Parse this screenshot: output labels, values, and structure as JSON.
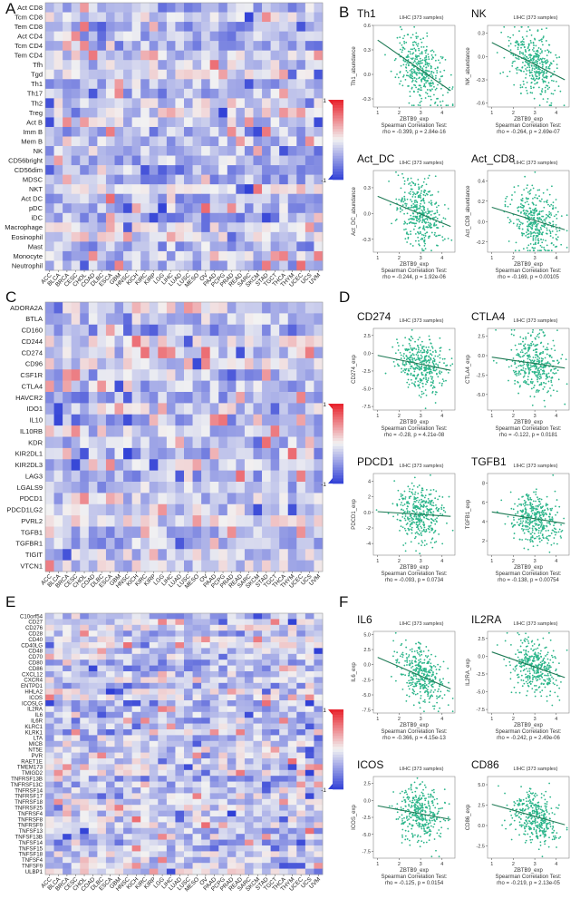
{
  "figure": {
    "panels": {
      "A": {
        "letter": "A"
      },
      "B": {
        "letter": "B"
      },
      "C": {
        "letter": "C"
      },
      "D": {
        "letter": "D"
      },
      "E": {
        "letter": "E"
      },
      "F": {
        "letter": "F"
      }
    },
    "palette": {
      "negative": "#2f3fd6",
      "neutral": "#f2f2f2",
      "positive": "#e8202a",
      "scatter": "#2bb58a",
      "fit_line": "#1f7a55"
    }
  },
  "heatmap_cancers": [
    "ACC",
    "BLCA",
    "BRCA",
    "CESC",
    "CHOL",
    "COAD",
    "DLBC",
    "ESCA",
    "GBM",
    "HNSC",
    "KICH",
    "KIRC",
    "KIRP",
    "LGG",
    "LIHC",
    "LUAD",
    "LUSC",
    "MESO",
    "OV",
    "PAAD",
    "PCPG",
    "PRAD",
    "READ",
    "SARC",
    "SKCM",
    "STAD",
    "TGCT",
    "THCA",
    "THYM",
    "UCEC",
    "UCS",
    "UVM"
  ],
  "chart_data": [
    {
      "type": "heatmap",
      "panel": "A",
      "rows": [
        "Act CD8",
        "Tcm CD8",
        "Tem CD8",
        "Act CD4",
        "Tcm CD4",
        "Tem CD4",
        "Tfh",
        "Tgd",
        "Th1",
        "Th17",
        "Th2",
        "Treg",
        "Act B",
        "Imm B",
        "Mem B",
        "NK",
        "CD56bright",
        "CD56dim",
        "MDSC",
        "NKT",
        "Act DC",
        "pDC",
        "iDC",
        "Macrophage",
        "Eosinophil",
        "Mast",
        "Monocyte",
        "Neutrophil"
      ],
      "columns_ref": "heatmap_cancers",
      "color_scale": {
        "min": -1,
        "max": 1,
        "min_label": "-1",
        "max_label": "1"
      }
    },
    {
      "type": "heatmap",
      "panel": "C",
      "rows": [
        "ADORA2A",
        "BTLA",
        "CD160",
        "CD244",
        "CD274",
        "CD96",
        "CSF1R",
        "CTLA4",
        "HAVCR2",
        "IDO1",
        "IL10",
        "IL10RB",
        "KDR",
        "KIR2DL1",
        "KIR2DL3",
        "LAG3",
        "LGALS9",
        "PDCD1",
        "PDCD1LG2",
        "PVRL2",
        "TGFB1",
        "TGFBR1",
        "TIGIT",
        "VTCN1"
      ],
      "columns_ref": "heatmap_cancers",
      "color_scale": {
        "min": -1,
        "max": 1,
        "min_label": "-1",
        "max_label": "1"
      }
    },
    {
      "type": "heatmap",
      "panel": "E",
      "rows": [
        "C10orf54",
        "CD27",
        "CD276",
        "CD28",
        "CD40",
        "CD40LG",
        "CD48",
        "CD70",
        "CD80",
        "CD86",
        "CXCL12",
        "CXCR4",
        "ENTPD1",
        "HHLA2",
        "ICOS",
        "ICOSLG",
        "IL2RA",
        "IL6",
        "IL6R",
        "KLRC1",
        "KLRK1",
        "LTA",
        "MICB",
        "NT5E",
        "PVR",
        "RAET1E",
        "TMEM173",
        "TMIGD2",
        "TNFRSF13B",
        "TNFRSF13C",
        "TNFRSF14",
        "TNFRSF17",
        "TNFRSF18",
        "TNFRSF25",
        "TNFRSF4",
        "TNFRSF8",
        "TNFRSF9",
        "TNFSF13",
        "TNFSF13B",
        "TNFSF14",
        "TNFSF15",
        "TNFSF18",
        "TNFSF4",
        "TNFSF9",
        "ULBP1"
      ],
      "columns_ref": "heatmap_cancers",
      "color_scale": {
        "min": -1,
        "max": 1,
        "min_label": "-1",
        "max_label": "1"
      }
    },
    {
      "type": "scatter",
      "panel": "B",
      "title": "Th1",
      "subtitle": "LIHC (373 samples)",
      "xlabel": "ZBTB9_exp",
      "ylabel": "Th1_abundance",
      "xticks": [
        1,
        2,
        3,
        4
      ],
      "yticks": [
        -0.3,
        0,
        0.3,
        0.6
      ],
      "xlim": [
        0.8,
        4.6
      ],
      "ylim": [
        -0.4,
        0.6
      ],
      "test": "Spearman Correlation Test:",
      "stat": "rho = -0.399, p = 2.84e-16",
      "rho": -0.399,
      "center": [
        3.0,
        0.08
      ],
      "spread": [
        0.55,
        0.2
      ],
      "n_points": 373,
      "fit": {
        "x": [
          1.0,
          4.4
        ],
        "y": [
          0.42,
          -0.2
        ]
      }
    },
    {
      "type": "scatter",
      "panel": "B",
      "title": "NK",
      "subtitle": "LIHC (373 samples)",
      "xlabel": "ZBTB9_exp",
      "ylabel": "NK_abundance",
      "xticks": [
        1,
        2,
        3,
        4
      ],
      "yticks": [
        -0.6,
        -0.3,
        0,
        0.3
      ],
      "xlim": [
        0.8,
        4.6
      ],
      "ylim": [
        -0.65,
        0.4
      ],
      "test": "Spearman Correlation Test:",
      "stat": "rho = -0.264, p = 2.69e-07",
      "rho": -0.264,
      "center": [
        3.0,
        -0.1
      ],
      "spread": [
        0.55,
        0.2
      ],
      "n_points": 373,
      "fit": {
        "x": [
          1.0,
          4.4
        ],
        "y": [
          0.18,
          -0.3
        ]
      }
    },
    {
      "type": "scatter",
      "panel": "B",
      "title": "Act_DC",
      "subtitle": "LIHC (373 samples)",
      "xlabel": "ZBTB9_exp",
      "ylabel": "Act_DC_abundance",
      "xticks": [
        1,
        2,
        3,
        4
      ],
      "yticks": [
        -0.3,
        0,
        0.3
      ],
      "xlim": [
        0.8,
        4.6
      ],
      "ylim": [
        -0.45,
        0.5
      ],
      "test": "Spearman Correlation Test:",
      "stat": "rho = -0.244, p = 1.92e-06",
      "rho": -0.244,
      "center": [
        3.0,
        0.0
      ],
      "spread": [
        0.55,
        0.18
      ],
      "n_points": 373,
      "fit": {
        "x": [
          1.0,
          4.4
        ],
        "y": [
          0.2,
          -0.15
        ]
      }
    },
    {
      "type": "scatter",
      "panel": "B",
      "title": "Act_CD8",
      "subtitle": "LIHC (373 samples)",
      "xlabel": "ZBTB9_exp",
      "ylabel": "Act_CD8_abundance",
      "xticks": [
        1,
        2,
        3,
        4
      ],
      "yticks": [
        -0.2,
        0,
        0.2,
        0.4
      ],
      "xlim": [
        0.8,
        4.6
      ],
      "ylim": [
        -0.3,
        0.5
      ],
      "test": "Spearman Correlation Test:",
      "stat": "rho = -0.169, p = 0.00105",
      "rho": -0.169,
      "center": [
        3.0,
        0.05
      ],
      "spread": [
        0.55,
        0.15
      ],
      "n_points": 373,
      "fit": {
        "x": [
          1.0,
          4.4
        ],
        "y": [
          0.14,
          -0.08
        ]
      }
    },
    {
      "type": "scatter",
      "panel": "D",
      "title": "CD274",
      "subtitle": "LIHC (373 samples)",
      "xlabel": "ZBTB9_exp",
      "ylabel": "CD274_exp",
      "xticks": [
        1,
        2,
        3,
        4
      ],
      "yticks": [
        -7.5,
        -5.0,
        -2.5,
        0.0,
        2.5
      ],
      "xlim": [
        0.8,
        4.6
      ],
      "ylim": [
        -8,
        3.5
      ],
      "test": "Spearman Correlation Test:",
      "stat": "rho = -0.28, p = 4.21e-08",
      "rho": -0.28,
      "center": [
        3.0,
        -1.6
      ],
      "spread": [
        0.55,
        1.8
      ],
      "n_points": 373,
      "fit": {
        "x": [
          1.0,
          4.4
        ],
        "y": [
          -0.3,
          -2.4
        ]
      }
    },
    {
      "type": "scatter",
      "panel": "D",
      "title": "CTLA4",
      "subtitle": "LIHC (373 samples)",
      "xlabel": "ZBTB9_exp",
      "ylabel": "CTLA4_exp",
      "xticks": [
        1,
        2,
        3,
        4
      ],
      "yticks": [
        -5.0,
        -2.5,
        0.0,
        2.5
      ],
      "xlim": [
        0.8,
        4.6
      ],
      "ylim": [
        -7,
        3.5
      ],
      "test": "Spearman Correlation Test:",
      "stat": "rho = -0.122, p = 0.0181",
      "rho": -0.122,
      "center": [
        3.0,
        -1.0
      ],
      "spread": [
        0.55,
        1.9
      ],
      "n_points": 373,
      "fit": {
        "x": [
          1.0,
          4.4
        ],
        "y": [
          -0.2,
          -1.6
        ]
      }
    },
    {
      "type": "scatter",
      "panel": "D",
      "title": "PDCD1",
      "subtitle": "LIHC (373 samples)",
      "xlabel": "ZBTB9_exp",
      "ylabel": "PDCD1_exp",
      "xticks": [
        1,
        2,
        3,
        4
      ],
      "yticks": [
        -4,
        -2,
        0,
        2,
        4
      ],
      "xlim": [
        0.8,
        4.6
      ],
      "ylim": [
        -5.5,
        5
      ],
      "test": "Spearman Correlation Test:",
      "stat": "rho = -0.093, p = 0.0734",
      "rho": -0.093,
      "center": [
        3.0,
        -0.4
      ],
      "spread": [
        0.55,
        1.7
      ],
      "n_points": 373,
      "fit": {
        "x": [
          1.0,
          4.4
        ],
        "y": [
          0.1,
          -0.5
        ]
      }
    },
    {
      "type": "scatter",
      "panel": "D",
      "title": "TGFB1",
      "subtitle": "LIHC (373 samples)",
      "xlabel": "ZBTB9_exp",
      "ylabel": "TGFB1_exp",
      "xticks": [
        1,
        2,
        3,
        4
      ],
      "yticks": [
        2,
        4,
        6,
        8
      ],
      "xlim": [
        0.8,
        4.6
      ],
      "ylim": [
        0.5,
        9
      ],
      "test": "Spearman Correlation Test:",
      "stat": "rho = -0.138, p = 0.00754",
      "rho": -0.138,
      "center": [
        3.0,
        4.3
      ],
      "spread": [
        0.55,
        1.3
      ],
      "n_points": 373,
      "fit": {
        "x": [
          1.0,
          4.4
        ],
        "y": [
          5.0,
          3.8
        ]
      }
    },
    {
      "type": "scatter",
      "panel": "F",
      "title": "IL6",
      "subtitle": "LIHC (373 samples)",
      "xlabel": "ZBTB9_exp",
      "ylabel": "IL6_exp",
      "xticks": [
        1,
        2,
        3,
        4
      ],
      "yticks": [
        -7.5,
        -5.0,
        -2.5,
        0.0,
        2.5,
        5.0
      ],
      "xlim": [
        0.8,
        4.6
      ],
      "ylim": [
        -8,
        5.5
      ],
      "test": "Spearman Correlation Test:",
      "stat": "rho = -0.366, p = 4.15e-13",
      "rho": -0.366,
      "center": [
        3.0,
        -2.0
      ],
      "spread": [
        0.55,
        2.2
      ],
      "n_points": 373,
      "fit": {
        "x": [
          1.0,
          4.4
        ],
        "y": [
          1.2,
          -4.0
        ]
      }
    },
    {
      "type": "scatter",
      "panel": "F",
      "title": "IL2RA",
      "subtitle": "LIHC (373 samples)",
      "xlabel": "ZBTB9_exp",
      "ylabel": "IL2RA_exp",
      "xticks": [
        1,
        2,
        3,
        4
      ],
      "yticks": [
        -7.5,
        -5.0,
        -2.5,
        0.0,
        2.5
      ],
      "xlim": [
        0.8,
        4.6
      ],
      "ylim": [
        -8,
        3.5
      ],
      "test": "Spearman Correlation Test:",
      "stat": "rho = -0.242, p = 2.49e-06",
      "rho": -0.242,
      "center": [
        3.0,
        -1.6
      ],
      "spread": [
        0.55,
        1.9
      ],
      "n_points": 373,
      "fit": {
        "x": [
          1.0,
          4.4
        ],
        "y": [
          0.6,
          -3.0
        ]
      }
    },
    {
      "type": "scatter",
      "panel": "F",
      "title": "ICOS",
      "subtitle": "LIHC (373 samples)",
      "xlabel": "ZBTB9_exp",
      "ylabel": "ICOS_exp",
      "xticks": [
        1,
        2,
        3,
        4
      ],
      "yticks": [
        -7.5,
        -5.0,
        -2.5,
        0.0,
        2.5
      ],
      "xlim": [
        0.8,
        4.6
      ],
      "ylim": [
        -8.5,
        3.5
      ],
      "test": "Spearman Correlation Test:",
      "stat": "rho = -0.125, p = 0.0154",
      "rho": -0.125,
      "center": [
        3.0,
        -2.0
      ],
      "spread": [
        0.55,
        2.0
      ],
      "n_points": 373,
      "fit": {
        "x": [
          1.0,
          4.4
        ],
        "y": [
          -0.8,
          -2.8
        ]
      }
    },
    {
      "type": "scatter",
      "panel": "F",
      "title": "CD86",
      "subtitle": "LIHC (373 samples)",
      "xlabel": "ZBTB9_exp",
      "ylabel": "CD86_exp",
      "xticks": [
        1,
        2,
        3,
        4
      ],
      "yticks": [
        -2.5,
        0.0,
        2.5,
        5.0
      ],
      "xlim": [
        0.8,
        4.6
      ],
      "ylim": [
        -4,
        6
      ],
      "test": "Spearman Correlation Test:",
      "stat": "rho = -0.219, p = 2.13e-05",
      "rho": -0.219,
      "center": [
        3.0,
        1.1
      ],
      "spread": [
        0.55,
        1.6
      ],
      "n_points": 373,
      "fit": {
        "x": [
          1.0,
          4.4
        ],
        "y": [
          2.6,
          0.1
        ]
      }
    }
  ]
}
